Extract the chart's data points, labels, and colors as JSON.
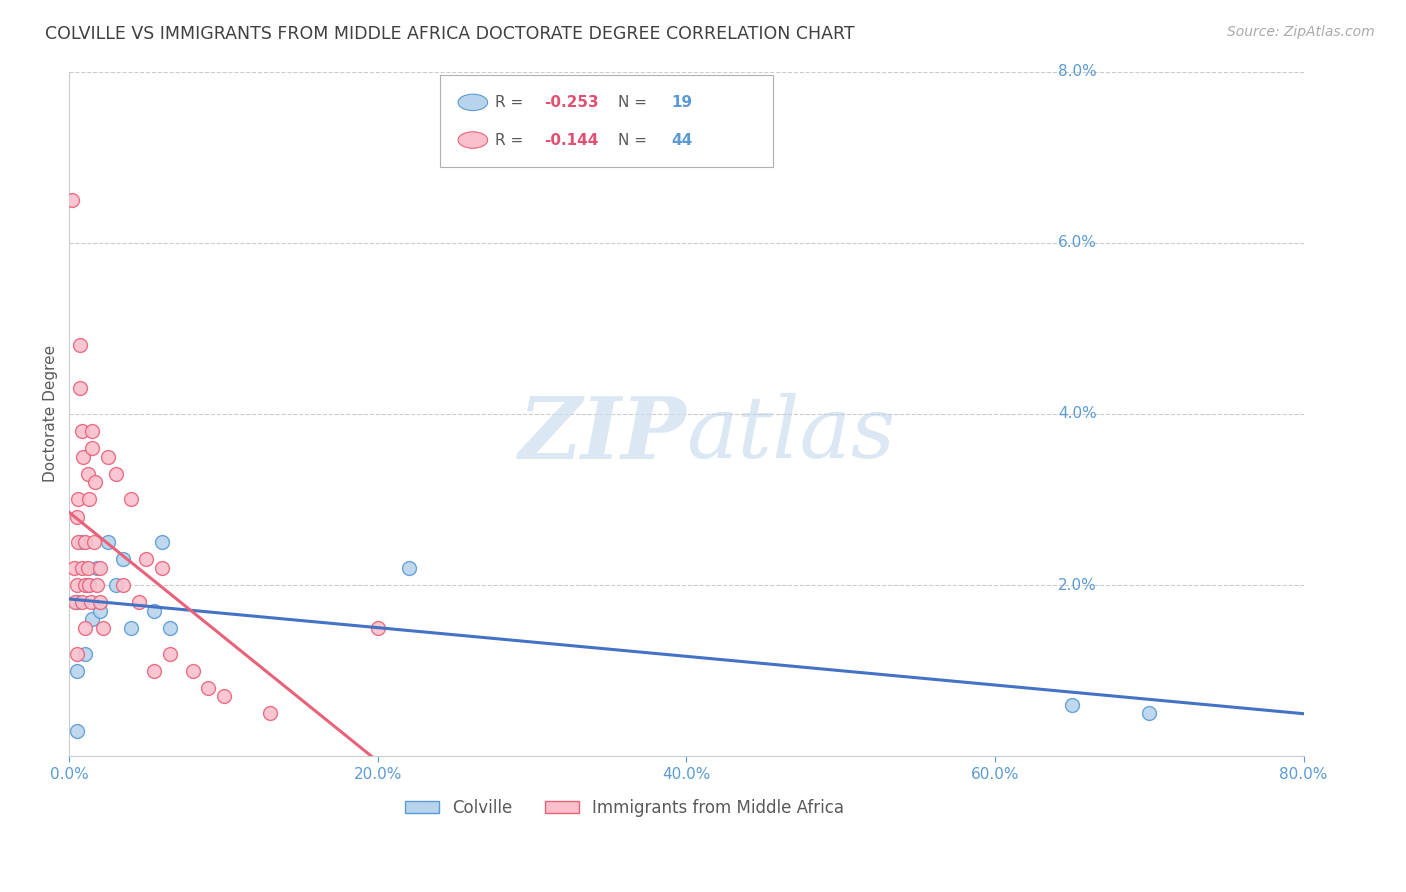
{
  "title": "COLVILLE VS IMMIGRANTS FROM MIDDLE AFRICA DOCTORATE DEGREE CORRELATION CHART",
  "source": "Source: ZipAtlas.com",
  "ylabel": "Doctorate Degree",
  "xlim": [
    0,
    0.8
  ],
  "ylim": [
    0,
    0.08
  ],
  "yticks": [
    0.0,
    0.02,
    0.04,
    0.06,
    0.08
  ],
  "ytick_labels": [
    "",
    "2.0%",
    "4.0%",
    "6.0%",
    "8.0%"
  ],
  "xticks": [
    0.0,
    0.2,
    0.4,
    0.6,
    0.8
  ],
  "xtick_labels": [
    "0.0%",
    "20.0%",
    "40.0%",
    "60.0%",
    "80.0%"
  ],
  "colville_fill": "#b8d4ed",
  "colville_edge": "#5b9bd5",
  "immigrants_fill": "#f9c0cc",
  "immigrants_edge": "#e8637a",
  "colville_line_color": "#4472c4",
  "immigrants_line_color": "#e8637a",
  "colville_R": -0.253,
  "colville_N": 19,
  "immigrants_R": -0.144,
  "immigrants_N": 44,
  "colville_scatter_x": [
    0.005,
    0.005,
    0.005,
    0.008,
    0.01,
    0.012,
    0.015,
    0.018,
    0.02,
    0.025,
    0.03,
    0.035,
    0.04,
    0.055,
    0.06,
    0.065,
    0.22,
    0.65,
    0.7
  ],
  "colville_scatter_y": [
    0.003,
    0.01,
    0.018,
    0.025,
    0.012,
    0.02,
    0.016,
    0.022,
    0.017,
    0.025,
    0.02,
    0.023,
    0.015,
    0.017,
    0.025,
    0.015,
    0.022,
    0.006,
    0.005
  ],
  "immigrants_scatter_x": [
    0.002,
    0.003,
    0.004,
    0.005,
    0.005,
    0.005,
    0.006,
    0.006,
    0.007,
    0.007,
    0.008,
    0.008,
    0.008,
    0.009,
    0.01,
    0.01,
    0.01,
    0.012,
    0.012,
    0.013,
    0.013,
    0.014,
    0.015,
    0.015,
    0.016,
    0.017,
    0.018,
    0.02,
    0.02,
    0.022,
    0.025,
    0.03,
    0.035,
    0.04,
    0.045,
    0.05,
    0.055,
    0.06,
    0.065,
    0.08,
    0.09,
    0.1,
    0.13,
    0.2
  ],
  "immigrants_scatter_y": [
    0.065,
    0.022,
    0.018,
    0.028,
    0.02,
    0.012,
    0.03,
    0.025,
    0.048,
    0.043,
    0.038,
    0.022,
    0.018,
    0.035,
    0.025,
    0.02,
    0.015,
    0.033,
    0.022,
    0.03,
    0.02,
    0.018,
    0.036,
    0.038,
    0.025,
    0.032,
    0.02,
    0.022,
    0.018,
    0.015,
    0.035,
    0.033,
    0.02,
    0.03,
    0.018,
    0.023,
    0.01,
    0.022,
    0.012,
    0.01,
    0.008,
    0.007,
    0.005,
    0.015
  ],
  "watermark_zip": "ZIP",
  "watermark_atlas": "atlas",
  "background_color": "#ffffff",
  "grid_color": "#cccccc",
  "title_color": "#404040",
  "axis_color": "#5b9bd5",
  "text_color": "#595959",
  "legend_R_color": "#e05070",
  "legend_N_color": "#5b9bd5"
}
